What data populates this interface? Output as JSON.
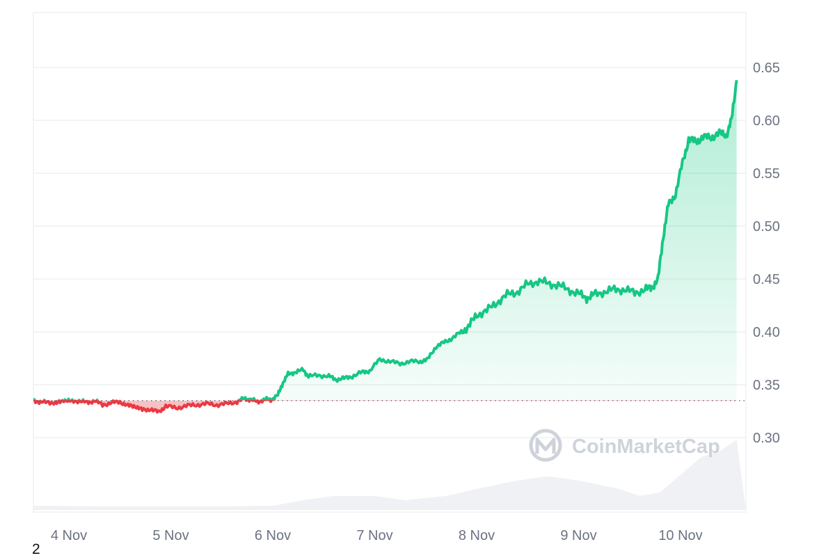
{
  "page_number": "2",
  "watermark": {
    "text": "CoinMarketCap",
    "icon": "coinmarketcap-logo"
  },
  "colors": {
    "up": "#16c784",
    "down": "#ea3943",
    "grid": "#eef0f3",
    "volume": "#eff1f5",
    "axis_text": "#6b7280"
  },
  "chart_data": {
    "type": "area",
    "x_tick_labels": [
      "4 Nov",
      "5 Nov",
      "6 Nov",
      "7 Nov",
      "8 Nov",
      "9 Nov",
      "10 Nov"
    ],
    "y_tick_labels": [
      "0.65",
      "0.60",
      "0.55",
      "0.50",
      "0.45",
      "0.40",
      "0.35",
      "0.30"
    ],
    "ylim": [
      0.235,
      0.695
    ],
    "xlim_days": [
      3.65,
      10.55
    ],
    "baseline": 0.335,
    "grid": true,
    "price_series": [
      [
        3.65,
        0.336
      ],
      [
        3.72,
        0.333
      ],
      [
        3.8,
        0.334
      ],
      [
        3.88,
        0.332
      ],
      [
        3.95,
        0.336
      ],
      [
        4.02,
        0.334
      ],
      [
        4.1,
        0.335
      ],
      [
        4.18,
        0.333
      ],
      [
        4.25,
        0.335
      ],
      [
        4.33,
        0.331
      ],
      [
        4.42,
        0.333
      ],
      [
        4.5,
        0.334
      ],
      [
        4.58,
        0.33
      ],
      [
        4.65,
        0.33
      ],
      [
        4.72,
        0.326
      ],
      [
        4.8,
        0.327
      ],
      [
        4.88,
        0.324
      ],
      [
        4.95,
        0.33
      ],
      [
        5.05,
        0.328
      ],
      [
        5.15,
        0.33
      ],
      [
        5.25,
        0.331
      ],
      [
        5.35,
        0.332
      ],
      [
        5.45,
        0.331
      ],
      [
        5.55,
        0.332
      ],
      [
        5.65,
        0.334
      ],
      [
        5.72,
        0.337
      ],
      [
        5.78,
        0.336
      ],
      [
        5.85,
        0.334
      ],
      [
        5.92,
        0.336
      ],
      [
        5.98,
        0.336
      ],
      [
        6.05,
        0.34
      ],
      [
        6.1,
        0.352
      ],
      [
        6.15,
        0.36
      ],
      [
        6.22,
        0.362
      ],
      [
        6.3,
        0.364
      ],
      [
        6.35,
        0.358
      ],
      [
        6.45,
        0.359
      ],
      [
        6.55,
        0.358
      ],
      [
        6.62,
        0.355
      ],
      [
        6.7,
        0.356
      ],
      [
        6.78,
        0.358
      ],
      [
        6.88,
        0.362
      ],
      [
        6.95,
        0.363
      ],
      [
        7.05,
        0.374
      ],
      [
        7.15,
        0.372
      ],
      [
        7.25,
        0.37
      ],
      [
        7.35,
        0.372
      ],
      [
        7.45,
        0.372
      ],
      [
        7.52,
        0.374
      ],
      [
        7.6,
        0.386
      ],
      [
        7.68,
        0.39
      ],
      [
        7.76,
        0.394
      ],
      [
        7.85,
        0.4
      ],
      [
        7.92,
        0.405
      ],
      [
        8.0,
        0.416
      ],
      [
        8.1,
        0.42
      ],
      [
        8.2,
        0.428
      ],
      [
        8.3,
        0.435
      ],
      [
        8.4,
        0.438
      ],
      [
        8.5,
        0.445
      ],
      [
        8.6,
        0.448
      ],
      [
        8.7,
        0.446
      ],
      [
        8.8,
        0.444
      ],
      [
        8.9,
        0.44
      ],
      [
        9.0,
        0.436
      ],
      [
        9.08,
        0.432
      ],
      [
        9.15,
        0.435
      ],
      [
        9.25,
        0.438
      ],
      [
        9.35,
        0.44
      ],
      [
        9.45,
        0.44
      ],
      [
        9.55,
        0.437
      ],
      [
        9.65,
        0.44
      ],
      [
        9.72,
        0.442
      ],
      [
        9.78,
        0.45
      ],
      [
        9.83,
        0.49
      ],
      [
        9.88,
        0.52
      ],
      [
        9.95,
        0.53
      ],
      [
        10.02,
        0.56
      ],
      [
        10.08,
        0.582
      ],
      [
        10.15,
        0.58
      ],
      [
        10.22,
        0.584
      ],
      [
        10.3,
        0.584
      ],
      [
        10.38,
        0.588
      ],
      [
        10.45,
        0.586
      ],
      [
        10.5,
        0.6
      ],
      [
        10.55,
        0.638
      ]
    ],
    "volume_series": [
      [
        3.65,
        0.06
      ],
      [
        4.5,
        0.05
      ],
      [
        5.5,
        0.05
      ],
      [
        6.0,
        0.06
      ],
      [
        6.3,
        0.14
      ],
      [
        6.6,
        0.2
      ],
      [
        7.0,
        0.2
      ],
      [
        7.3,
        0.14
      ],
      [
        7.7,
        0.2
      ],
      [
        8.0,
        0.3
      ],
      [
        8.4,
        0.42
      ],
      [
        8.7,
        0.48
      ],
      [
        9.0,
        0.42
      ],
      [
        9.4,
        0.3
      ],
      [
        9.6,
        0.2
      ],
      [
        9.8,
        0.25
      ],
      [
        10.0,
        0.5
      ],
      [
        10.2,
        0.75
      ],
      [
        10.4,
        0.85
      ],
      [
        10.55,
        1.0
      ]
    ]
  }
}
